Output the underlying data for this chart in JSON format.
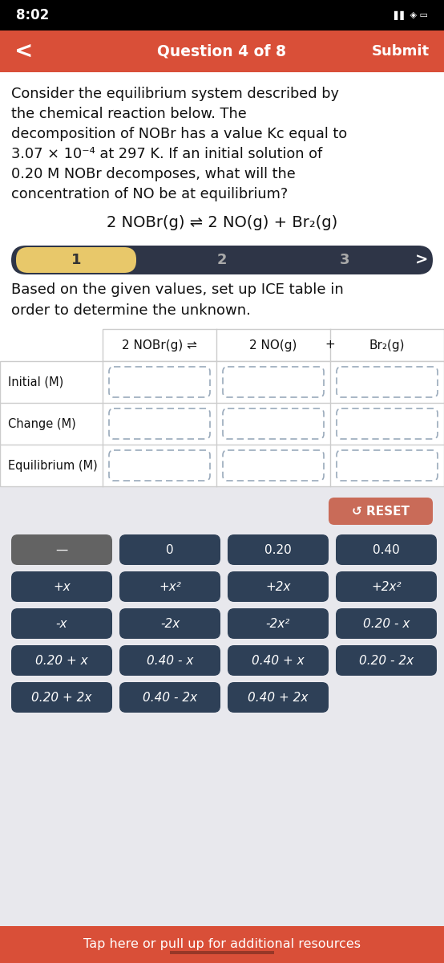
{
  "status_bar_time": "8:02",
  "nav_bar_color": "#D94F38",
  "nav_text": "Question 4 of 8",
  "nav_submit": "Submit",
  "bg_color": "#FFFFFF",
  "lower_bg_color": "#E8E8ED",
  "question_lines": [
    "Consider the equilibrium system described by",
    "the chemical reaction below. The",
    "decomposition of NOBr has a value Kc equal to",
    "3.07 × 10⁻⁴ at 297 K. If an initial solution of",
    "0.20 M NOBr decomposes, what will the",
    "concentration of NO be at equilibrium?"
  ],
  "reaction_equation": "2 NOBr(g) ⇌ 2 NO(g) + Br₂(g)",
  "step_bar_color_active": "#E8C86A",
  "step_bar_bg": "#2E3547",
  "step_labels": [
    "1",
    "2",
    "3"
  ],
  "instruction_lines": [
    "Based on the given values, set up ICE table in",
    "order to determine the unknown."
  ],
  "ice_rows": [
    "Initial (M)",
    "Change (M)",
    "Equilibrium (M)"
  ],
  "table_border_color": "#CCCCCC",
  "dashed_box_color": "#9AAABB",
  "reset_btn_color": "#C96B58",
  "reset_text": "↺ RESET",
  "btn_color_dark": "#2E4057",
  "btn_color_gray": "#636363",
  "buttons_row1": [
    "—",
    "0",
    "0.20",
    "0.40"
  ],
  "buttons_row2": [
    "+x",
    "+x²",
    "+2x",
    "+2x²"
  ],
  "buttons_row3": [
    "-x",
    "-2x",
    "-2x²",
    "0.20 - x"
  ],
  "buttons_row4": [
    "0.20 + x",
    "0.40 - x",
    "0.40 + x",
    "0.20 - 2x"
  ],
  "buttons_row5": [
    "0.20 + 2x",
    "0.40 - 2x",
    "0.40 + 2x",
    ""
  ],
  "bottom_bar_color": "#D94F38",
  "bottom_bar_text": "Tap here or pull up for additional resources",
  "status_bar_bg": "#000000"
}
